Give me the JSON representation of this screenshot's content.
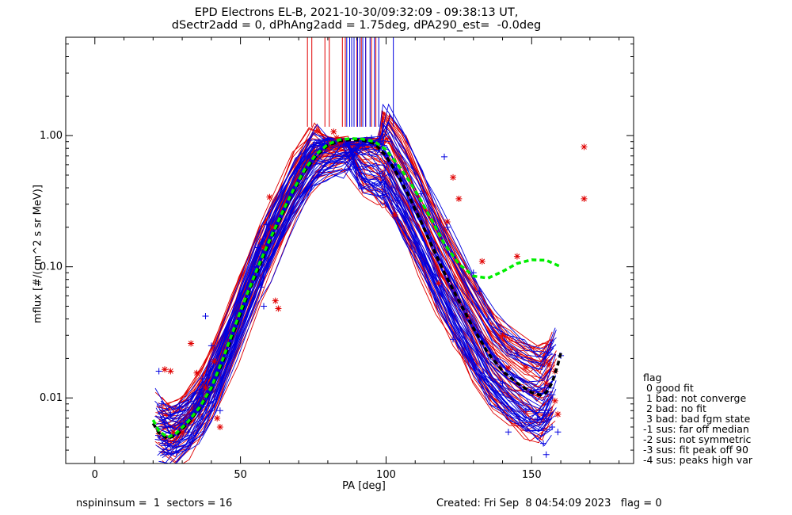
{
  "title_line1": "EPD Electrons EL-B, 2021-10-30/09:32:09 - 09:38:13 UT,",
  "title_line2": "dSectr2add = 0, dPhAng2add = 1.75deg, dPA290_est=  -0.0deg",
  "footer_left": "nspininsum =  1  sectors = 16",
  "footer_right": "Created: Fri Sep  8 04:54:09 2023   flag = 0",
  "legend": {
    "title": "flag",
    "items": [
      " 0 good fit",
      " 1 bad: not converge",
      " 2 bad: no fit",
      " 3 bad: bad fgm state",
      "-1 sus: far off median",
      "-2 sus: not symmetric",
      "-3 sus: fit peak off 90",
      "-4 sus: peaks high var"
    ]
  },
  "colors": {
    "red": "#e00000",
    "blue": "#0000e0",
    "green": "#00ee00",
    "black": "#000000"
  },
  "chart_data": {
    "type": "line",
    "xlabel": "PA [deg]",
    "ylabel": "mflux [#/(cm^2 s sr MeV)]",
    "xlim": [
      -10,
      185
    ],
    "ylim_log10": [
      -2.5,
      0.75
    ],
    "log_y": true,
    "x_ticks": [
      0,
      50,
      100,
      150
    ],
    "x_tick_labels": [
      "0",
      "50",
      "100",
      "150"
    ],
    "y_ticks": [
      0.01,
      0.1,
      1.0
    ],
    "y_tick_labels": [
      "0.01",
      "0.10",
      "1.00"
    ],
    "vertical_marks": {
      "red": [
        73,
        74.5,
        79,
        80.5,
        85,
        86,
        87.5,
        89,
        90,
        91.5,
        93,
        95,
        96.5
      ],
      "blue": [
        86.5,
        87.5,
        88.2,
        89,
        90.2,
        91,
        92,
        93,
        94.5,
        96,
        97.5,
        102.5
      ]
    },
    "fits": {
      "green": {
        "x": [
          20,
          22,
          25,
          28,
          32,
          36,
          40,
          44,
          48,
          52,
          56,
          60,
          64,
          68,
          72,
          76,
          80,
          84,
          88,
          92,
          96,
          100,
          104,
          108,
          112,
          116,
          120,
          125,
          130,
          135,
          140,
          145,
          150,
          155,
          160
        ],
        "y": [
          0.0068,
          0.0056,
          0.005,
          0.0054,
          0.0066,
          0.0085,
          0.012,
          0.02,
          0.035,
          0.06,
          0.1,
          0.16,
          0.25,
          0.38,
          0.55,
          0.72,
          0.86,
          0.93,
          0.95,
          0.94,
          0.9,
          0.78,
          0.6,
          0.45,
          0.32,
          0.22,
          0.15,
          0.105,
          0.085,
          0.082,
          0.092,
          0.106,
          0.113,
          0.112,
          0.1
        ]
      },
      "black": {
        "x": [
          20,
          22,
          25,
          28,
          32,
          36,
          40,
          44,
          48,
          52,
          56,
          60,
          64,
          68,
          72,
          76,
          80,
          84,
          88,
          92,
          96,
          100,
          104,
          108,
          112,
          116,
          120,
          125,
          130,
          135,
          140,
          145,
          150,
          153,
          155,
          157,
          159,
          160
        ],
        "y": [
          0.0064,
          0.0054,
          0.0049,
          0.0052,
          0.0064,
          0.0083,
          0.0117,
          0.019,
          0.033,
          0.057,
          0.095,
          0.155,
          0.24,
          0.37,
          0.53,
          0.7,
          0.84,
          0.91,
          0.93,
          0.92,
          0.87,
          0.7,
          0.5,
          0.34,
          0.22,
          0.14,
          0.09,
          0.055,
          0.034,
          0.022,
          0.016,
          0.013,
          0.011,
          0.0105,
          0.011,
          0.013,
          0.018,
          0.022
        ]
      }
    },
    "crosses": {
      "red": [
        [
          24,
          0.0165
        ],
        [
          26,
          0.016
        ],
        [
          27,
          0.0055
        ],
        [
          30,
          0.0055
        ],
        [
          33,
          0.026
        ],
        [
          35,
          0.0155
        ],
        [
          38,
          0.012
        ],
        [
          41,
          0.019
        ],
        [
          42,
          0.007
        ],
        [
          43,
          0.006
        ],
        [
          58,
          0.14
        ],
        [
          60,
          0.34
        ],
        [
          61,
          0.2
        ],
        [
          62,
          0.055
        ],
        [
          63,
          0.048
        ],
        [
          80,
          0.8
        ],
        [
          81,
          0.88
        ],
        [
          82,
          1.07
        ],
        [
          83,
          0.96
        ],
        [
          84,
          0.88
        ],
        [
          85,
          0.91
        ],
        [
          103,
          0.25
        ],
        [
          118,
          0.075
        ],
        [
          121,
          0.22
        ],
        [
          123,
          0.48
        ],
        [
          125,
          0.33
        ],
        [
          128,
          0.042
        ],
        [
          133,
          0.11
        ],
        [
          140,
          0.03
        ],
        [
          142,
          0.017
        ],
        [
          145,
          0.12
        ],
        [
          148,
          0.017
        ],
        [
          155,
          0.013
        ],
        [
          156,
          0.018
        ],
        [
          158,
          0.016
        ],
        [
          158,
          0.0095
        ],
        [
          159,
          0.0075
        ],
        [
          168,
          0.33
        ],
        [
          168,
          0.82
        ]
      ],
      "blue": [
        [
          22,
          0.016
        ],
        [
          23,
          0.009
        ],
        [
          24,
          0.0065
        ],
        [
          25,
          0.0045
        ],
        [
          26,
          0.0075
        ],
        [
          28,
          0.0038
        ],
        [
          29,
          0.0085
        ],
        [
          30,
          0.003
        ],
        [
          32,
          0.0055
        ],
        [
          34,
          0.009
        ],
        [
          37,
          0.014
        ],
        [
          38,
          0.042
        ],
        [
          40,
          0.025
        ],
        [
          42,
          0.016
        ],
        [
          43,
          0.008
        ],
        [
          55,
          0.1
        ],
        [
          56,
          0.14
        ],
        [
          57,
          0.07
        ],
        [
          58,
          0.05
        ],
        [
          59,
          0.21
        ],
        [
          60,
          0.15
        ],
        [
          75,
          0.85
        ],
        [
          77,
          0.9
        ],
        [
          78,
          0.82
        ],
        [
          79,
          0.78
        ],
        [
          80,
          0.93
        ],
        [
          95,
          0.96
        ],
        [
          98,
          0.9
        ],
        [
          100,
          0.7
        ],
        [
          102,
          0.4
        ],
        [
          103,
          0.6
        ],
        [
          104,
          0.32
        ],
        [
          112,
          0.36
        ],
        [
          120,
          0.69
        ],
        [
          121,
          0.2
        ],
        [
          123,
          0.028
        ],
        [
          130,
          0.09
        ],
        [
          132,
          0.065
        ],
        [
          135,
          0.04
        ],
        [
          140,
          0.013
        ],
        [
          142,
          0.0055
        ],
        [
          145,
          0.022
        ],
        [
          148,
          0.008
        ],
        [
          152,
          0.007
        ],
        [
          154,
          0.0045
        ],
        [
          155,
          0.0037
        ],
        [
          157,
          0.006
        ],
        [
          159,
          0.0055
        ],
        [
          160,
          0.021
        ]
      ]
    }
  }
}
